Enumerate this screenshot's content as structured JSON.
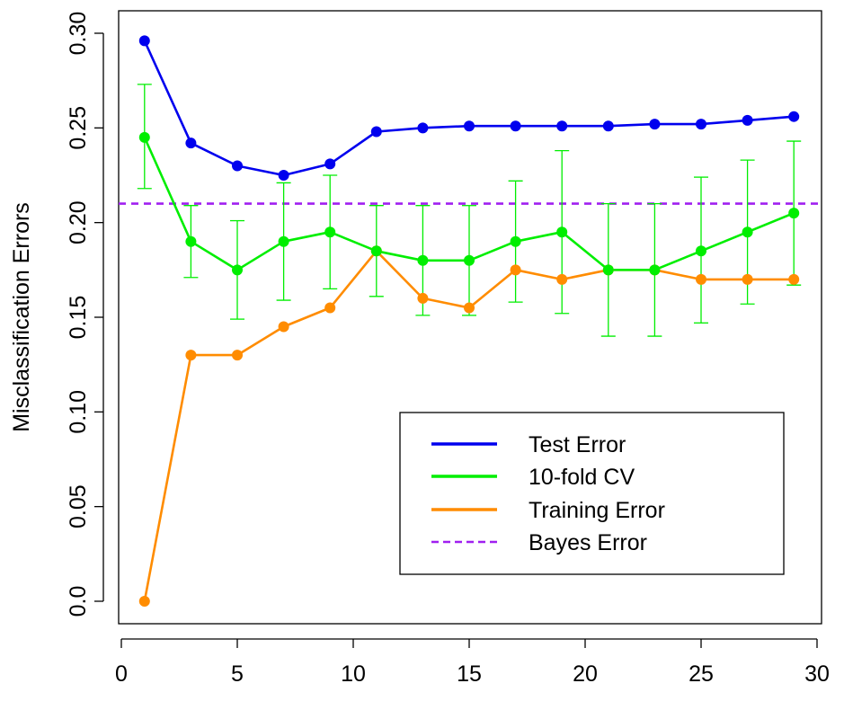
{
  "chart_data": {
    "type": "line",
    "title": "",
    "xlabel": "",
    "ylabel": "Misclassification Errors",
    "xlim": [
      0,
      30
    ],
    "ylim": [
      0,
      0.3
    ],
    "x_ticks": [
      "0",
      "5",
      "10",
      "15",
      "20",
      "25",
      "30"
    ],
    "y_ticks": [
      "0.0",
      "0.05",
      "0.10",
      "0.15",
      "0.20",
      "0.25",
      "0.30"
    ],
    "grid": false,
    "legend_position": "bottom-right",
    "x": [
      1,
      3,
      5,
      7,
      9,
      11,
      13,
      15,
      17,
      19,
      21,
      23,
      25,
      27,
      29
    ],
    "series": [
      {
        "name": "Test Error",
        "color": "#0000ee",
        "style": "solid-line-with-points",
        "values": [
          0.296,
          0.242,
          0.23,
          0.225,
          0.231,
          0.248,
          0.25,
          0.251,
          0.251,
          0.251,
          0.251,
          0.252,
          0.252,
          0.254,
          0.256
        ]
      },
      {
        "name": "10-fold CV",
        "color": "#00ee00",
        "style": "solid-line-with-points-and-error-bars",
        "values": [
          0.245,
          0.19,
          0.175,
          0.19,
          0.195,
          0.185,
          0.18,
          0.18,
          0.19,
          0.195,
          0.175,
          0.175,
          0.185,
          0.195,
          0.205
        ],
        "error_low": [
          0.218,
          0.171,
          0.149,
          0.159,
          0.165,
          0.161,
          0.151,
          0.151,
          0.158,
          0.152,
          0.14,
          0.14,
          0.147,
          0.157,
          0.167
        ],
        "error_high": [
          0.273,
          0.209,
          0.201,
          0.221,
          0.225,
          0.209,
          0.209,
          0.209,
          0.222,
          0.238,
          0.21,
          0.21,
          0.224,
          0.233,
          0.243
        ]
      },
      {
        "name": "Training Error",
        "color": "#ff8c00",
        "style": "solid-line-with-points",
        "values": [
          0.0,
          0.13,
          0.13,
          0.145,
          0.155,
          0.185,
          0.16,
          0.155,
          0.175,
          0.17,
          0.175,
          0.175,
          0.17,
          0.17,
          0.17
        ]
      },
      {
        "name": "Bayes Error",
        "color": "#a020f0",
        "style": "dashed-horizontal-line",
        "value": 0.21
      }
    ]
  }
}
